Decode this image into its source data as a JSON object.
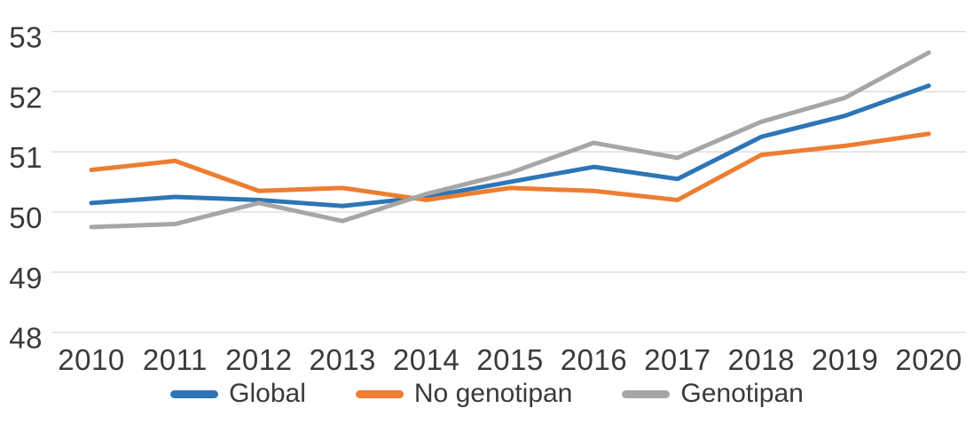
{
  "chart_data": {
    "type": "line",
    "title": "",
    "xlabel": "",
    "ylabel": "",
    "x": [
      2010,
      2011,
      2012,
      2013,
      2014,
      2015,
      2016,
      2017,
      2018,
      2019,
      2020
    ],
    "series": [
      {
        "name": "Global",
        "color": "#2E75B6",
        "values": [
          50.15,
          50.25,
          50.2,
          50.1,
          50.25,
          50.5,
          50.75,
          50.55,
          51.25,
          51.6,
          52.1
        ]
      },
      {
        "name": "No genotipan",
        "color": "#ED7D31",
        "values": [
          50.7,
          50.85,
          50.35,
          50.4,
          50.2,
          50.4,
          50.35,
          50.2,
          50.95,
          51.1,
          51.3
        ]
      },
      {
        "name": "Genotipan",
        "color": "#A6A6A6",
        "values": [
          49.75,
          49.8,
          50.15,
          49.85,
          50.3,
          50.65,
          51.15,
          50.9,
          51.5,
          51.9,
          52.65
        ]
      }
    ],
    "ylim": [
      48,
      53
    ],
    "yticks": [
      53,
      52,
      51,
      50,
      49,
      48
    ],
    "grid": "horizontal-only",
    "gridline_color": "#D9D9D9",
    "text_color": "#3a3a3a",
    "legend_position": "bottom-center",
    "line_width": 5
  }
}
